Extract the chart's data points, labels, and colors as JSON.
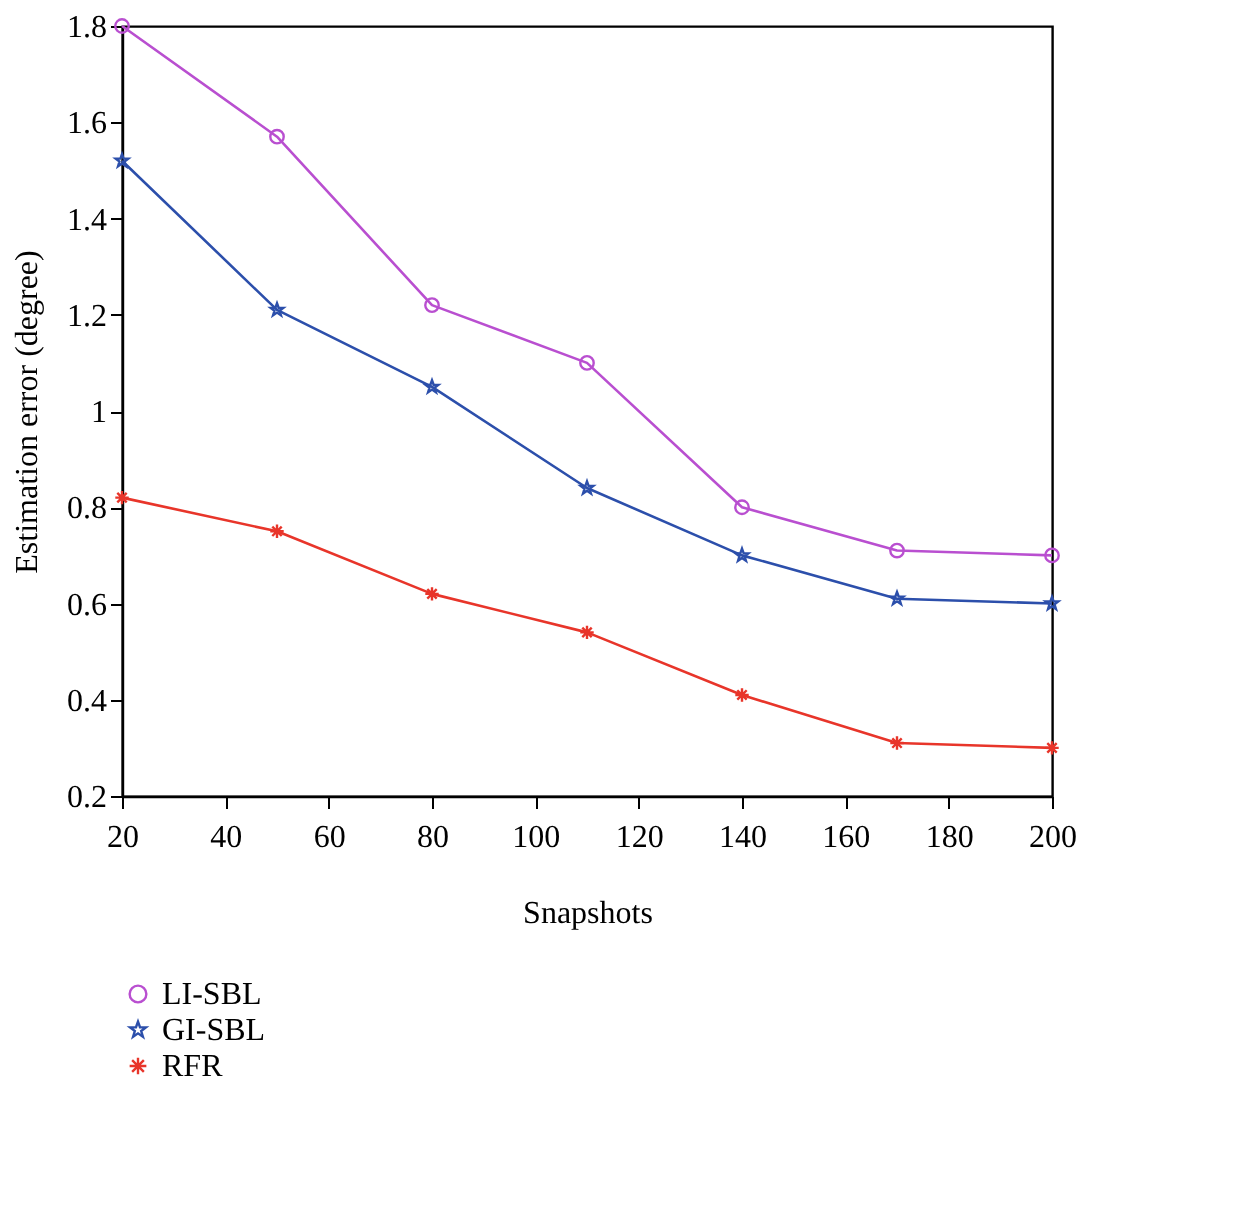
{
  "chart_data": {
    "type": "line",
    "xlabel": "Snapshots",
    "ylabel": "Estimation error (degree)",
    "x": [
      20,
      50,
      80,
      110,
      140,
      170,
      200
    ],
    "xlim": [
      20,
      200
    ],
    "xticks": [
      20,
      40,
      60,
      80,
      100,
      120,
      140,
      160,
      180,
      200
    ],
    "ylim": [
      0.2,
      1.8
    ],
    "yticks": [
      0.2,
      0.4,
      0.6,
      0.8,
      1,
      1.2,
      1.4,
      1.6,
      1.8
    ],
    "grid": false,
    "legend": "bottom left",
    "line_style": "solid",
    "series": [
      {
        "name": "LI-SBL",
        "color": "#b94fd0",
        "marker": "circle",
        "values": [
          1.8,
          1.57,
          1.22,
          1.1,
          0.8,
          0.71,
          0.7
        ]
      },
      {
        "name": "GI-SBL",
        "color": "#2c4fab",
        "marker": "star",
        "values": [
          1.52,
          1.21,
          1.05,
          0.84,
          0.7,
          0.61,
          0.6
        ]
      },
      {
        "name": "RFR",
        "color": "#e8352a",
        "marker": "cross",
        "values": [
          0.82,
          0.75,
          0.62,
          0.54,
          0.41,
          0.31,
          0.3
        ]
      }
    ]
  }
}
